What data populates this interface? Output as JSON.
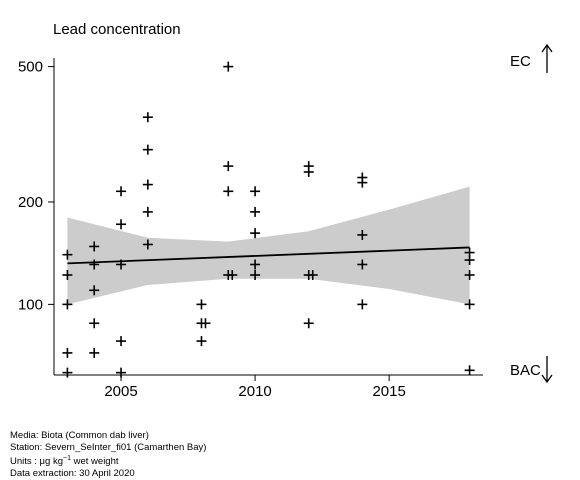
{
  "chart_data": {
    "type": "scatter",
    "title": "Lead concentration",
    "xlabel": "",
    "ylabel": "",
    "x_ticks": [
      2005,
      2010,
      2015
    ],
    "y_ticks": [
      100,
      200,
      500
    ],
    "y_scale": "log",
    "xlim": [
      2002.5,
      2018.5
    ],
    "ylim": [
      62,
      530
    ],
    "grid": false,
    "markers": "plus",
    "points": [
      {
        "x": 2003,
        "y": 63
      },
      {
        "x": 2003,
        "y": 72
      },
      {
        "x": 2003,
        "y": 100
      },
      {
        "x": 2003,
        "y": 122
      },
      {
        "x": 2003,
        "y": 140
      },
      {
        "x": 2004,
        "y": 72
      },
      {
        "x": 2004,
        "y": 88
      },
      {
        "x": 2004,
        "y": 110
      },
      {
        "x": 2004,
        "y": 131
      },
      {
        "x": 2004,
        "y": 148
      },
      {
        "x": 2005,
        "y": 63
      },
      {
        "x": 2005,
        "y": 78
      },
      {
        "x": 2005,
        "y": 131
      },
      {
        "x": 2005,
        "y": 172
      },
      {
        "x": 2005,
        "y": 215
      },
      {
        "x": 2006,
        "y": 150
      },
      {
        "x": 2006,
        "y": 187
      },
      {
        "x": 2006,
        "y": 225
      },
      {
        "x": 2006,
        "y": 285
      },
      {
        "x": 2006,
        "y": 355
      },
      {
        "x": 2008,
        "y": 78
      },
      {
        "x": 2008,
        "y": 88
      },
      {
        "x": 2008,
        "y": 88
      },
      {
        "x": 2008,
        "y": 100
      },
      {
        "x": 2009,
        "y": 122
      },
      {
        "x": 2009,
        "y": 122
      },
      {
        "x": 2009,
        "y": 215
      },
      {
        "x": 2009,
        "y": 255
      },
      {
        "x": 2009,
        "y": 500
      },
      {
        "x": 2010,
        "y": 122
      },
      {
        "x": 2010,
        "y": 131
      },
      {
        "x": 2010,
        "y": 162
      },
      {
        "x": 2010,
        "y": 187
      },
      {
        "x": 2010,
        "y": 215
      },
      {
        "x": 2012,
        "y": 88
      },
      {
        "x": 2012,
        "y": 122
      },
      {
        "x": 2012,
        "y": 122
      },
      {
        "x": 2012,
        "y": 245
      },
      {
        "x": 2012,
        "y": 255
      },
      {
        "x": 2014,
        "y": 100
      },
      {
        "x": 2014,
        "y": 131
      },
      {
        "x": 2014,
        "y": 160
      },
      {
        "x": 2014,
        "y": 228
      },
      {
        "x": 2014,
        "y": 236
      },
      {
        "x": 2018,
        "y": 64
      },
      {
        "x": 2018,
        "y": 100
      },
      {
        "x": 2018,
        "y": 122
      },
      {
        "x": 2018,
        "y": 135
      },
      {
        "x": 2018,
        "y": 142
      }
    ],
    "trend_line": {
      "x": [
        2003,
        2018
      ],
      "y": [
        132,
        147
      ]
    },
    "confidence_band": {
      "x": [
        2003,
        2006,
        2009,
        2012,
        2015,
        2018
      ],
      "lower": [
        100,
        114,
        119,
        119,
        111,
        100
      ],
      "upper": [
        180,
        157,
        153,
        164,
        190,
        222
      ]
    },
    "band_color": "#cccccc",
    "reference_labels": [
      {
        "text": "EC",
        "arrow": "up",
        "side": "right",
        "position": "top"
      },
      {
        "text": "BAC",
        "arrow": "down",
        "side": "right",
        "position": "bottom"
      }
    ]
  },
  "caption": {
    "media": "Media: Biota (Common dab liver)",
    "station": "Station: Severn_SeInter_fi01 (Camarthen Bay)",
    "units_prefix": "Units : μg kg",
    "units_sup": "−1",
    "units_suffix": " wet weight",
    "extraction": "Data extraction: 30 April 2020"
  }
}
